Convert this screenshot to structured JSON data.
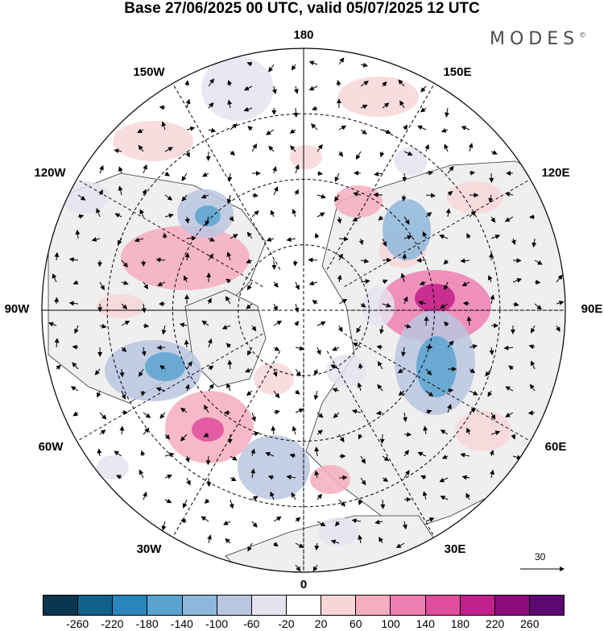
{
  "title": "Base 27/06/2025 00 UTC, valid 05/07/2025 12 UTC",
  "brand": "MODES",
  "brand_mark": "©",
  "map": {
    "projection": "north polar stereographic",
    "longitude_labels": [
      "180",
      "150E",
      "120E",
      "90E",
      "60E",
      "30E",
      "0",
      "30W",
      "60W",
      "90W",
      "120W",
      "150W"
    ],
    "graticule": "dashed",
    "land_color": "#efefef",
    "ocean_color": "#ffffff"
  },
  "reference_vector": {
    "label": "30"
  },
  "colorbar": {
    "tick_labels": [
      "-260",
      "-220",
      "-180",
      "-140",
      "-100",
      "-60",
      "-20",
      "20",
      "60",
      "100",
      "140",
      "180",
      "220",
      "260"
    ],
    "colors": [
      "#0b3550",
      "#135f8c",
      "#2a85bb",
      "#5aa3cf",
      "#8eb7db",
      "#bac5e1",
      "#e4e3f0",
      "#ffffff",
      "#f8d6d8",
      "#f6adbf",
      "#ee7fb2",
      "#e04c9e",
      "#c11f89",
      "#8d0b7b",
      "#5b0871"
    ]
  }
}
